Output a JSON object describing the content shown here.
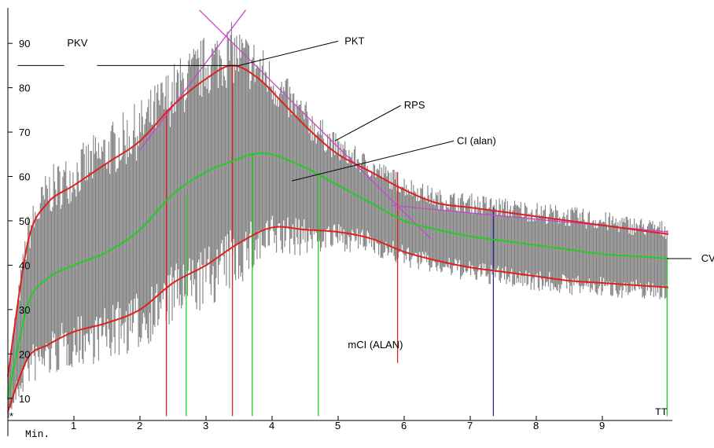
{
  "chart_data": {
    "type": "line",
    "xlim": [
      0,
      10
    ],
    "ylim": [
      5,
      98
    ],
    "x_ticks": [
      1,
      2,
      3,
      4,
      5,
      6,
      7,
      8,
      9
    ],
    "y_ticks": [
      10,
      20,
      30,
      40,
      50,
      60,
      70,
      80,
      90
    ],
    "x_unit_label": "Min.",
    "x_end_label": "TT",
    "origin_marker": "*",
    "colors": {
      "envelope_upper": "#e02020",
      "envelope_lower": "#e02020",
      "mean_curve": "#22cc22",
      "rps_lines": "#cc44cc",
      "noise_band": "#808080",
      "marker_blue": "#2222aa"
    },
    "series": [
      {
        "key": "upper",
        "x": [
          0,
          0.3,
          0.6,
          1,
          1.5,
          2,
          2.5,
          3,
          3.4,
          3.8,
          4.2,
          4.6,
          5,
          5.5,
          6,
          6.5,
          7,
          7.5,
          8,
          8.5,
          9,
          9.5,
          10
        ],
        "values": [
          15,
          45,
          54,
          58,
          63,
          68,
          76,
          82,
          85,
          82,
          76,
          70,
          65,
          61,
          57,
          54,
          53,
          52,
          51,
          50,
          49,
          48,
          47
        ]
      },
      {
        "key": "lower",
        "x": [
          0,
          0.3,
          0.6,
          1,
          1.5,
          2,
          2.5,
          3,
          3.5,
          4,
          4.5,
          5,
          5.5,
          6,
          6.5,
          7,
          7.5,
          8,
          8.5,
          9,
          9.5,
          10
        ],
        "values": [
          7,
          19,
          22,
          25,
          27,
          30,
          36,
          40,
          45,
          48.5,
          48,
          47.5,
          46,
          43,
          41,
          39.5,
          38.5,
          37.5,
          36.5,
          36,
          35.5,
          35
        ]
      },
      {
        "key": "mean",
        "x": [
          0,
          0.3,
          0.6,
          1,
          1.5,
          2,
          2.5,
          3,
          3.5,
          3.7,
          4,
          4.5,
          5,
          5.5,
          6,
          6.5,
          7,
          7.5,
          8,
          8.5,
          9,
          9.5,
          10
        ],
        "values": [
          10,
          31,
          37,
          40,
          43,
          48,
          56,
          61,
          64,
          65,
          65,
          62,
          58,
          54,
          50,
          48,
          46.5,
          45.5,
          44.5,
          43.5,
          42.5,
          42,
          41.5
        ]
      }
    ],
    "rps_lines": [
      {
        "x": [
          2.0,
          3.6
        ],
        "values": [
          66,
          97.5
        ]
      },
      {
        "x": [
          2.9,
          6.4
        ],
        "values": [
          97.5,
          46
        ]
      },
      {
        "x": [
          5.8,
          10
        ],
        "values": [
          53.5,
          47.5
        ]
      }
    ],
    "markers": [
      {
        "x": 2.4,
        "from": 6,
        "to": 75,
        "color": "#e02020"
      },
      {
        "x": 2.7,
        "from": 6,
        "to": 56,
        "color": "#22cc22"
      },
      {
        "x": 3.4,
        "from": 6,
        "to": 85,
        "color": "#e02020"
      },
      {
        "x": 3.7,
        "from": 6,
        "to": 65,
        "color": "#22cc22"
      },
      {
        "x": 4.7,
        "from": 6,
        "to": 60,
        "color": "#22cc22"
      },
      {
        "x": 5.9,
        "from": 18,
        "to": 61,
        "color": "#e02020"
      },
      {
        "x": 7.35,
        "from": 6,
        "to": 53,
        "color": "#2222aa"
      },
      {
        "x": 9.98,
        "from": 6,
        "to": 41.5,
        "color": "#22cc22"
      }
    ],
    "annotations": [
      {
        "text": "PKV",
        "x": 0.85,
        "y": 90,
        "line": {
          "x1": 0.15,
          "y1": 85,
          "x2": 0.85,
          "y2": 85
        }
      },
      {
        "text": "PKT",
        "x": 5.05,
        "y": 90.5,
        "line": {
          "x1": 1.35,
          "y1": 85,
          "x2": 3.5,
          "y2": 85,
          "x3": 5.0,
          "y3": 90.5
        }
      },
      {
        "text": "RPS",
        "x": 5.95,
        "y": 76,
        "line": {
          "x1": 4.95,
          "y1": 68,
          "x2": 5.95,
          "y2": 76
        }
      },
      {
        "text": "CI (alan)",
        "x": 6.75,
        "y": 68,
        "line": {
          "x1": 4.3,
          "y1": 59,
          "x2": 6.75,
          "y2": 68
        }
      },
      {
        "text": "mCI (ALAN)",
        "x": 5.1,
        "y": 22,
        "line": null
      },
      {
        "text": "CV",
        "x": 10.45,
        "y": 41.5,
        "line": {
          "x1": 9.98,
          "y1": 41.5,
          "x2": 10.35,
          "y2": 41.5
        }
      }
    ]
  }
}
